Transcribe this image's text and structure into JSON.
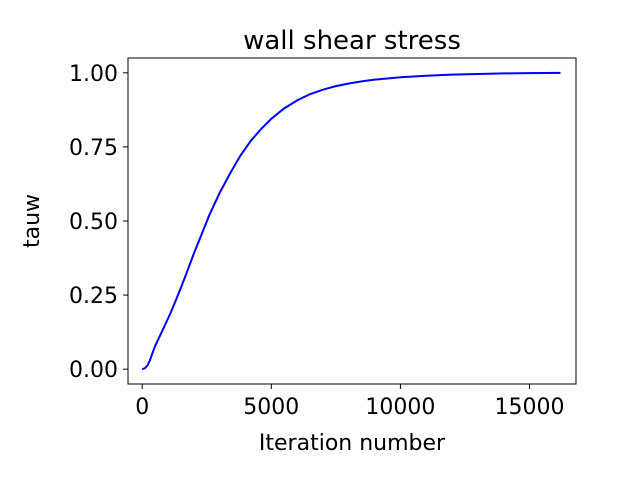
{
  "chart_data": {
    "type": "line",
    "title": "wall shear stress",
    "xlabel": "Iteration number",
    "ylabel": "tauw",
    "xlim": [
      -550,
      16800
    ],
    "ylim": [
      -0.05,
      1.05
    ],
    "xticks": [
      0,
      5000,
      10000,
      15000
    ],
    "xtick_labels": [
      "0",
      "5000",
      "10000",
      "15000"
    ],
    "yticks": [
      0.0,
      0.25,
      0.5,
      0.75,
      1.0
    ],
    "ytick_labels": [
      "0.00",
      "0.25",
      "0.50",
      "0.75",
      "1.00"
    ],
    "grid": false,
    "series": [
      {
        "color": "#0000ff",
        "x": [
          0,
          100,
          200,
          300,
          400,
          500,
          700,
          900,
          1100,
          1300,
          1500,
          1700,
          2000,
          2300,
          2600,
          3000,
          3400,
          3800,
          4200,
          4600,
          5000,
          5500,
          6000,
          6500,
          7000,
          7500,
          8000,
          8500,
          9000,
          9500,
          10000,
          11000,
          12000,
          13000,
          14000,
          15000,
          16200
        ],
        "y": [
          0.0,
          0.003,
          0.012,
          0.03,
          0.055,
          0.078,
          0.115,
          0.152,
          0.19,
          0.232,
          0.275,
          0.32,
          0.39,
          0.455,
          0.52,
          0.595,
          0.66,
          0.72,
          0.77,
          0.81,
          0.845,
          0.88,
          0.907,
          0.928,
          0.943,
          0.955,
          0.964,
          0.971,
          0.977,
          0.981,
          0.985,
          0.99,
          0.994,
          0.996,
          0.998,
          0.999,
          1.0
        ]
      }
    ]
  }
}
